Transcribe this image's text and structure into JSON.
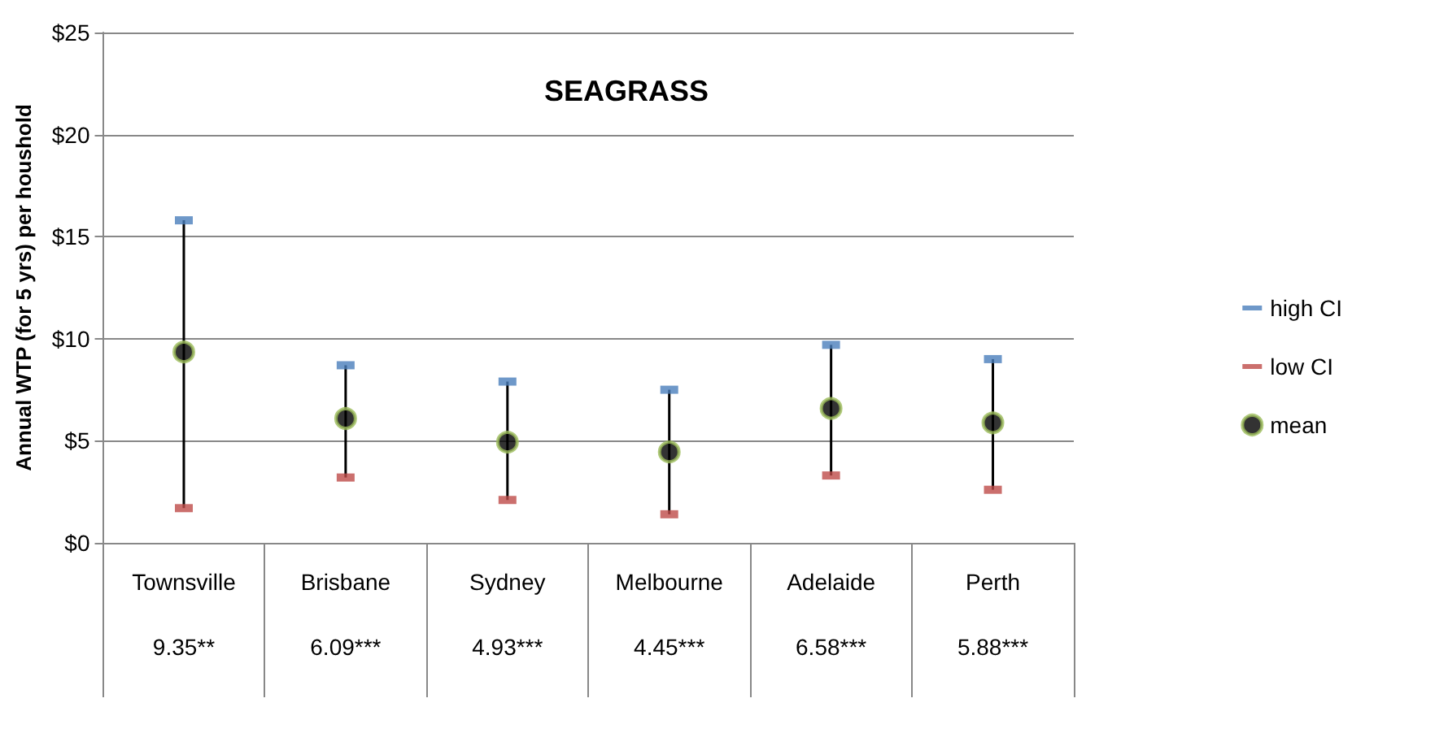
{
  "chart_data": {
    "type": "scatter",
    "title": "SEAGRASS",
    "ylabel": "Annual WTP (for 5 yrs) per houshold",
    "categories": [
      "Townsville",
      "Brisbane",
      "Sydney",
      "Melbourne",
      "Adelaide",
      "Perth"
    ],
    "series": [
      {
        "name": "high CI",
        "color": "#4a7ebb",
        "marker": "square",
        "values": [
          15.8,
          8.7,
          7.9,
          7.5,
          9.7,
          9.0
        ]
      },
      {
        "name": "low CI",
        "color": "#be4b48",
        "marker": "square",
        "values": [
          1.7,
          3.2,
          2.1,
          1.4,
          3.3,
          2.6
        ]
      },
      {
        "name": "mean",
        "color": "#000000",
        "marker": "circle",
        "values": [
          9.35,
          6.09,
          4.93,
          4.45,
          6.58,
          5.88
        ],
        "value_labels": [
          "9.35**",
          "6.09***",
          "4.93***",
          "4.45***",
          "6.58***",
          "5.88***"
        ]
      }
    ],
    "ylim": [
      0,
      25
    ],
    "yticks": [
      {
        "value": 0,
        "label": "$0"
      },
      {
        "value": 5,
        "label": "$5"
      },
      {
        "value": 10,
        "label": "$10"
      },
      {
        "value": 15,
        "label": "$15"
      },
      {
        "value": 20,
        "label": "$20"
      },
      {
        "value": 25,
        "label": "$25"
      }
    ],
    "grid": "y",
    "legend": "right"
  }
}
